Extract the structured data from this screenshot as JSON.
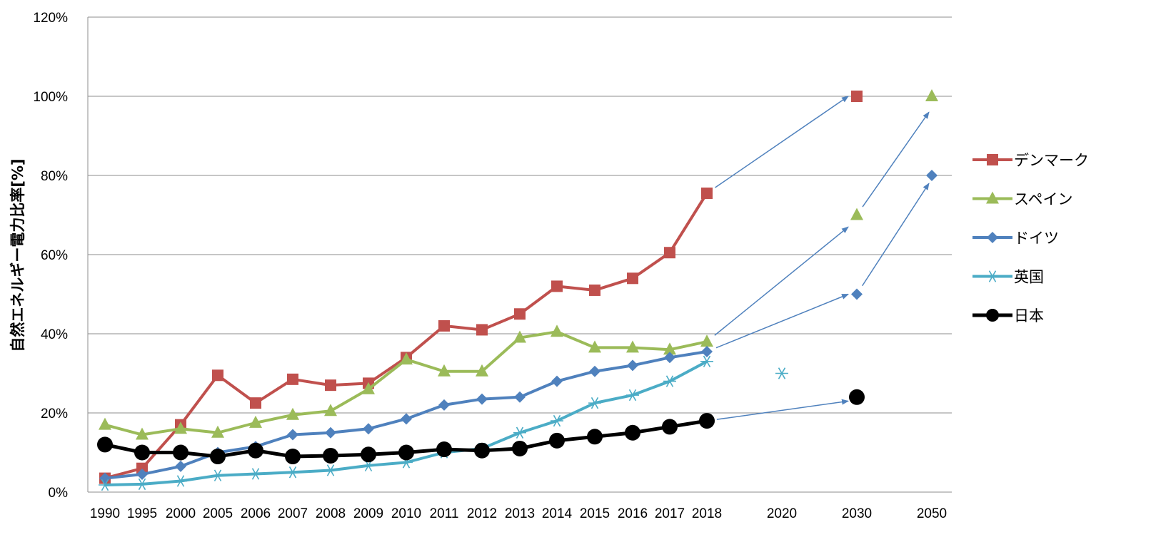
{
  "chart_data": {
    "type": "line",
    "ylabel": "自然エネルギー電力比率[%]",
    "xlabel": "",
    "title": "",
    "ylim": [
      0,
      120
    ],
    "yticks": [
      "0%",
      "20%",
      "40%",
      "60%",
      "80%",
      "100%",
      "120%"
    ],
    "grid": true,
    "legend_position": "right",
    "categories": [
      "1990",
      "1995",
      "2000",
      "2005",
      "2006",
      "2007",
      "2008",
      "2009",
      "2010",
      "2011",
      "2012",
      "2013",
      "2014",
      "2015",
      "2016",
      "2017",
      "2018",
      "2020",
      "2030",
      "2050"
    ],
    "series": [
      {
        "name": "デンマーク",
        "color": "#c0504d",
        "marker": "square",
        "line_width": 4,
        "values": [
          3.5,
          6,
          17,
          29.5,
          22.5,
          28.5,
          27,
          27.5,
          34,
          42,
          41,
          45,
          52,
          51,
          54,
          60.5,
          75.5,
          null,
          100,
          null
        ]
      },
      {
        "name": "スペイン",
        "color": "#9bbb59",
        "marker": "triangle",
        "line_width": 4,
        "values": [
          17,
          14.5,
          16,
          15,
          17.5,
          19.5,
          20.5,
          26,
          33.5,
          30.5,
          30.5,
          39,
          40.5,
          36.5,
          36.5,
          36,
          38,
          null,
          70,
          100
        ]
      },
      {
        "name": "ドイツ",
        "color": "#4f81bd",
        "marker": "diamond",
        "line_width": 4,
        "values": [
          3.5,
          4.5,
          6.5,
          10,
          11.5,
          14.5,
          15,
          16,
          18.5,
          22,
          23.5,
          24,
          28,
          30.5,
          32,
          34,
          35.5,
          null,
          50,
          80
        ]
      },
      {
        "name": "英国",
        "color": "#4bacc6",
        "marker": "asterisk",
        "line_width": 4,
        "values": [
          1.8,
          2,
          2.8,
          4.2,
          4.6,
          5,
          5.5,
          6.7,
          7.5,
          10,
          11,
          15,
          18,
          22.5,
          24.5,
          28,
          33,
          30,
          null,
          null
        ]
      },
      {
        "name": "日本",
        "color": "#000000",
        "marker": "circle",
        "line_width": 5,
        "values": [
          12,
          10,
          10,
          9,
          10.5,
          9,
          9.2,
          9.5,
          10,
          10.8,
          10.5,
          11,
          13,
          14,
          15,
          16.5,
          18,
          null,
          24,
          null
        ]
      }
    ],
    "arrows": [
      {
        "from": [
          "2018",
          75.5
        ],
        "to": [
          "2030",
          100
        ]
      },
      {
        "from": [
          "2018",
          38
        ],
        "to": [
          "2030",
          67
        ]
      },
      {
        "from": [
          "2018",
          35.5
        ],
        "to": [
          "2030",
          50
        ]
      },
      {
        "from": [
          "2030",
          70
        ],
        "to": [
          "2050",
          96
        ]
      },
      {
        "from": [
          "2030",
          50
        ],
        "to": [
          "2050",
          78
        ]
      },
      {
        "from": [
          "2018",
          18
        ],
        "to": [
          "2030",
          23
        ]
      }
    ],
    "arrow_color": "#4f81bd"
  }
}
